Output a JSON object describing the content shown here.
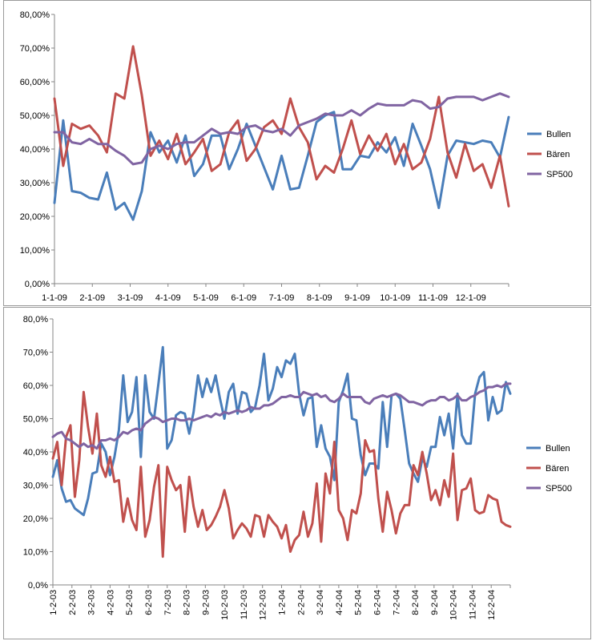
{
  "chart_data": [
    {
      "type": "line",
      "title": "",
      "xlabel": "",
      "ylabel": "",
      "ylim": [
        0,
        80
      ],
      "y_ticks": [
        "0,00%",
        "10,00%",
        "20,00%",
        "30,00%",
        "40,00%",
        "50,00%",
        "60,00%",
        "70,00%",
        "80,00%"
      ],
      "x_ticks": [
        "1-1-09",
        "2-1-09",
        "3-1-09",
        "4-1-09",
        "5-1-09",
        "6-1-09",
        "7-1-09",
        "8-1-09",
        "9-1-09",
        "10-1-09",
        "11-1-09",
        "12-1-09"
      ],
      "grid": false,
      "legend": "right",
      "series": [
        {
          "name": "Bullen",
          "color": "#4a7eba",
          "values": [
            24,
            48.5,
            27.5,
            27,
            25.5,
            25,
            33,
            22,
            24,
            19,
            27.5,
            45,
            39,
            42.5,
            36,
            44,
            32,
            35.5,
            44,
            44,
            34,
            40,
            47.5,
            41,
            34.5,
            28,
            38,
            28,
            28.5,
            38,
            48,
            50,
            51,
            34,
            34,
            38,
            37.5,
            42,
            39,
            43.5,
            35,
            47.5,
            41,
            34,
            22.5,
            38,
            42.5,
            42,
            41.5,
            42.5,
            42,
            37.5,
            49.5
          ]
        },
        {
          "name": "Bären",
          "color": "#c0504d",
          "values": [
            55,
            35,
            47.5,
            46,
            47,
            44,
            39,
            56.5,
            55,
            70.5,
            56,
            38,
            42.5,
            37,
            44.5,
            35.5,
            39,
            43,
            33.5,
            35.5,
            45,
            48.5,
            36.5,
            40,
            46.5,
            48.5,
            44.5,
            55,
            46.5,
            42,
            31,
            35,
            33,
            40,
            48.5,
            38.5,
            44,
            39.5,
            44.5,
            35.5,
            41.5,
            34,
            36,
            43,
            55.5,
            39,
            31.5,
            41.5,
            33.5,
            35.5,
            28.5,
            38,
            23
          ]
        },
        {
          "name": "SP500",
          "color": "#8064a2",
          "values": [
            45,
            45,
            42,
            41.5,
            43,
            41.5,
            41.5,
            39.5,
            38,
            35.5,
            36,
            40,
            41,
            40,
            41.5,
            42,
            42,
            44,
            46,
            44.5,
            45,
            44.5,
            46.5,
            47,
            45.5,
            45,
            46,
            44,
            47,
            48,
            49,
            50.5,
            50,
            50,
            51.5,
            50,
            52,
            53.5,
            53,
            53,
            53,
            54.5,
            54,
            52,
            52.5,
            55,
            55.5,
            55.5,
            55.5,
            54.5,
            55.5,
            56.5,
            55.5
          ]
        }
      ]
    },
    {
      "type": "line",
      "title": "",
      "xlabel": "",
      "ylabel": "",
      "ylim": [
        0,
        80
      ],
      "y_ticks": [
        "0,0%",
        "10,0%",
        "20,0%",
        "30,0%",
        "40,0%",
        "50,0%",
        "60,0%",
        "70,0%",
        "80,0%"
      ],
      "x_ticks": [
        "1-2-03",
        "2-2-03",
        "3-2-03",
        "4-2-03",
        "5-2-03",
        "6-2-03",
        "7-2-03",
        "8-2-03",
        "9-2-03",
        "10-2-03",
        "11-2-03",
        "12-2-03",
        "1-2-04",
        "2-2-04",
        "3-2-04",
        "4-2-04",
        "5-2-04",
        "6-2-04",
        "7-2-04",
        "8-2-04",
        "9-2-04",
        "10-2-04",
        "11-2-04",
        "12-2-04"
      ],
      "grid": false,
      "legend": "right",
      "series": [
        {
          "name": "Bullen",
          "color": "#4a7eba",
          "values": [
            32.5,
            37.5,
            29,
            25,
            25.5,
            23,
            22,
            21,
            26,
            33.5,
            34,
            42.5,
            40,
            33,
            38.5,
            46.5,
            63,
            49,
            52,
            62.5,
            38.5,
            63,
            52,
            50,
            60.5,
            71.5,
            41,
            43.5,
            51,
            52,
            51.5,
            45.5,
            52,
            63,
            56.5,
            62,
            58,
            63,
            56,
            50,
            58,
            60.5,
            51.5,
            58,
            57.5,
            52,
            53.5,
            60,
            69.5,
            55.5,
            59,
            65.5,
            62.5,
            67.5,
            66.5,
            69.5,
            57.5,
            51,
            56,
            56.5,
            41.5,
            48,
            41,
            38.5,
            31.5,
            55,
            58.5,
            63.5,
            50,
            49.5,
            39,
            33,
            36.5,
            36.5,
            35,
            55,
            41.5,
            57,
            57.5,
            56,
            46.5,
            36.5,
            33.5,
            31,
            38,
            35.5,
            41.5,
            41.5,
            50.5,
            45,
            51.5,
            41,
            57.5,
            45,
            42.5,
            42.5,
            57.5,
            62.5,
            64,
            49.5,
            56.5,
            51.5,
            52.5,
            61,
            57.5
          ]
        },
        {
          "name": "Bären",
          "color": "#c0504d",
          "values": [
            38,
            43,
            30,
            44.5,
            48,
            26.5,
            37.5,
            58,
            47.5,
            39.5,
            51.5,
            36,
            32.5,
            38.5,
            31,
            31.5,
            19,
            26,
            19.5,
            16.5,
            35.5,
            14.5,
            19.5,
            29.5,
            36,
            8.5,
            35.5,
            31.5,
            28.5,
            30,
            16,
            32.5,
            23.5,
            17.5,
            22.5,
            16.5,
            18,
            20.5,
            23.5,
            28.5,
            23,
            14,
            16.5,
            18.5,
            17,
            14.5,
            21,
            20.5,
            14.5,
            21,
            19,
            17.5,
            14,
            18,
            10,
            13.5,
            15,
            22,
            14.5,
            18.5,
            30.5,
            13,
            33.5,
            27.5,
            43,
            22.5,
            20,
            13.5,
            22.5,
            21.5,
            27.5,
            43.5,
            40,
            40.5,
            26,
            16,
            28,
            22.5,
            15.5,
            21.5,
            24,
            24,
            36,
            33,
            40,
            33.5,
            25.5,
            28.5,
            24,
            31.5,
            26.5,
            39.5,
            19.5,
            28.5,
            29,
            32,
            22.5,
            21.5,
            22,
            27,
            26,
            25.5,
            19,
            18,
            17.5
          ]
        },
        {
          "name": "SP500",
          "color": "#8064a2",
          "values": [
            44.5,
            45.5,
            46,
            44,
            43.5,
            42.5,
            41.5,
            42.5,
            41.5,
            42,
            41,
            43.5,
            43.5,
            44,
            43.5,
            44.5,
            46,
            45.5,
            46.5,
            47,
            46.5,
            48.5,
            49.5,
            50.5,
            50,
            49,
            49.5,
            50,
            50,
            49.5,
            49.5,
            50,
            49.5,
            50,
            50.5,
            51,
            50.5,
            51.5,
            51,
            52,
            51.5,
            52,
            52.5,
            52,
            52.5,
            53.5,
            53,
            53,
            54,
            54,
            54.5,
            55.5,
            56.5,
            56.5,
            57,
            56.5,
            56.5,
            58,
            57.5,
            57,
            57.5,
            56.5,
            57,
            55.5,
            55,
            56,
            57.5,
            56.5,
            56.5,
            56.5,
            56.5,
            55,
            54.5,
            56,
            56.5,
            57,
            56.5,
            57,
            57.5,
            57,
            56,
            55,
            55,
            54.5,
            54,
            55,
            55.5,
            55.5,
            56.5,
            56.5,
            55.5,
            56,
            57,
            55.5,
            55.5,
            56.5,
            57,
            58,
            58.5,
            59.5,
            59.5,
            60,
            59.5,
            60.5,
            60.5
          ]
        }
      ]
    }
  ]
}
